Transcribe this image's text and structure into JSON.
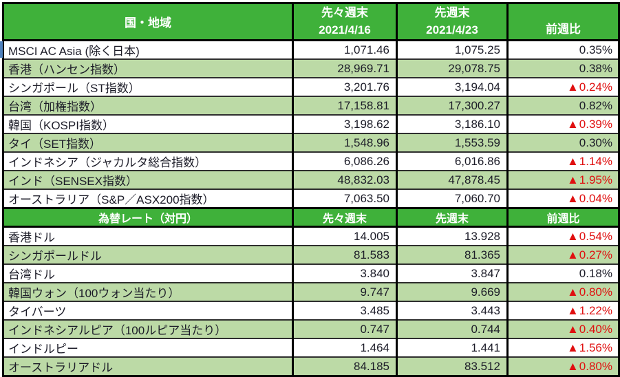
{
  "icons": {
    "decline_marker": "▲"
  },
  "colors": {
    "header_green": "#3FB13A",
    "row_light_green": "#BCDAA6",
    "negative_red": "#E01010",
    "text_dark": "#1C1C28",
    "border_black": "#000000",
    "selection_blue": "#4F81BD"
  },
  "chart_data": [
    {
      "type": "table",
      "title": "国・地域",
      "columns": [
        "国・地域",
        "先々週末 2021/4/16",
        "先週末 2021/4/23",
        "前週比"
      ],
      "header": {
        "col1": "国・地域",
        "col2_line1": "先々週末",
        "col2_line2": "2021/4/16",
        "col3_line1": "先週末",
        "col3_line2": "2021/4/23",
        "col4": "前週比"
      },
      "rows": [
        {
          "name": "MSCI AC Asia (除く日本)",
          "prev2": "1,071.46",
          "prev1": "1,075.25",
          "chg": "0.35%",
          "neg": false
        },
        {
          "name": "香港（ハンセン指数）",
          "prev2": "28,969.71",
          "prev1": "29,078.75",
          "chg": "0.38%",
          "neg": false
        },
        {
          "name": "シンガポール（ST指数）",
          "prev2": "3,201.76",
          "prev1": "3,194.04",
          "chg": "0.24%",
          "neg": true
        },
        {
          "name": "台湾（加権指数）",
          "prev2": "17,158.81",
          "prev1": "17,300.27",
          "chg": "0.82%",
          "neg": false
        },
        {
          "name": "韓国（KOSPI指数）",
          "prev2": "3,198.62",
          "prev1": "3,186.10",
          "chg": "0.39%",
          "neg": true
        },
        {
          "name": "タイ（SET指数）",
          "prev2": "1,548.96",
          "prev1": "1,553.59",
          "chg": "0.30%",
          "neg": false
        },
        {
          "name": "インドネシア（ジャカルタ総合指数）",
          "prev2": "6,086.26",
          "prev1": "6,016.86",
          "chg": "1.14%",
          "neg": true
        },
        {
          "name": "インド（SENSEX指数）",
          "prev2": "48,832.03",
          "prev1": "47,878.45",
          "chg": "1.95%",
          "neg": true
        },
        {
          "name": "オーストラリア（S&P／ASX200指数）",
          "prev2": "7,063.50",
          "prev1": "7,060.70",
          "chg": "0.04%",
          "neg": true
        }
      ]
    },
    {
      "type": "table",
      "title": "為替レート（対円）",
      "columns": [
        "為替レート（対円）",
        "先々週末",
        "先週末",
        "前週比"
      ],
      "header": {
        "col1": "為替レート（対円）",
        "col2": "先々週末",
        "col3": "先週末",
        "col4": "前週比"
      },
      "rows": [
        {
          "name": "香港ドル",
          "prev2": "14.005",
          "prev1": "13.928",
          "chg": "0.54%",
          "neg": true
        },
        {
          "name": "シンガポールドル",
          "prev2": "81.583",
          "prev1": "81.365",
          "chg": "0.27%",
          "neg": true
        },
        {
          "name": "台湾ドル",
          "prev2": "3.840",
          "prev1": "3.847",
          "chg": "0.18%",
          "neg": false
        },
        {
          "name": "韓国ウォン（100ウォン当たり）",
          "prev2": "9.747",
          "prev1": "9.669",
          "chg": "0.80%",
          "neg": true
        },
        {
          "name": "タイバーツ",
          "prev2": "3.485",
          "prev1": "3.443",
          "chg": "1.22%",
          "neg": true
        },
        {
          "name": "インドネシアルピア（100ルピア当たり）",
          "prev2": "0.747",
          "prev1": "0.744",
          "chg": "0.40%",
          "neg": true
        },
        {
          "name": "インドルピー",
          "prev2": "1.464",
          "prev1": "1.441",
          "chg": "1.56%",
          "neg": true
        },
        {
          "name": "オーストラリアドル",
          "prev2": "84.185",
          "prev1": "83.512",
          "chg": "0.80%",
          "neg": true
        }
      ]
    }
  ]
}
